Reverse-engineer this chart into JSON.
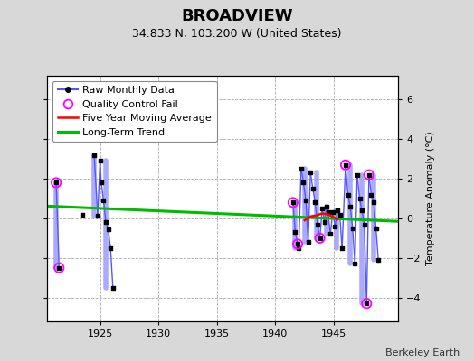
{
  "title": "BROADVIEW",
  "subtitle": "34.833 N, 103.200 W (United States)",
  "ylabel": "Temperature Anomaly (°C)",
  "credit": "Berkeley Earth",
  "xlim": [
    1920.5,
    1950.5
  ],
  "ylim": [
    -5.2,
    7.2
  ],
  "yticks": [
    -4,
    -2,
    0,
    2,
    4,
    6
  ],
  "xticks": [
    1925,
    1930,
    1935,
    1940,
    1945
  ],
  "bg_color": "#d8d8d8",
  "plot_bg_color": "#ffffff",
  "grid_color": "#aaaaaa",
  "raw_monthly": [
    [
      1921.25,
      1.8
    ],
    [
      1921.5,
      -2.5
    ],
    [
      1923.5,
      0.2
    ],
    [
      1924.5,
      3.2
    ],
    [
      1924.8,
      0.15
    ],
    [
      1925.0,
      2.9
    ],
    [
      1925.1,
      1.8
    ],
    [
      1925.3,
      0.9
    ],
    [
      1925.5,
      -0.2
    ],
    [
      1925.7,
      -0.55
    ],
    [
      1925.9,
      -1.5
    ],
    [
      1926.1,
      -3.5
    ],
    [
      1941.5,
      0.8
    ],
    [
      1941.7,
      -0.7
    ],
    [
      1941.9,
      -1.3
    ],
    [
      1942.0,
      -1.5
    ],
    [
      1942.2,
      2.5
    ],
    [
      1942.4,
      1.8
    ],
    [
      1942.6,
      0.9
    ],
    [
      1942.8,
      -1.2
    ],
    [
      1943.0,
      2.3
    ],
    [
      1943.2,
      1.5
    ],
    [
      1943.4,
      0.8
    ],
    [
      1943.6,
      -0.3
    ],
    [
      1943.8,
      -1.0
    ],
    [
      1944.0,
      0.5
    ],
    [
      1944.2,
      -0.2
    ],
    [
      1944.35,
      0.6
    ],
    [
      1944.5,
      0.3
    ],
    [
      1944.7,
      -0.8
    ],
    [
      1944.9,
      0.3
    ],
    [
      1945.1,
      -0.4
    ],
    [
      1945.3,
      0.4
    ],
    [
      1945.5,
      0.2
    ],
    [
      1945.7,
      -1.5
    ],
    [
      1946.0,
      2.7
    ],
    [
      1946.2,
      1.2
    ],
    [
      1946.4,
      0.6
    ],
    [
      1946.6,
      -0.5
    ],
    [
      1946.8,
      -2.3
    ],
    [
      1947.0,
      2.2
    ],
    [
      1947.2,
      1.0
    ],
    [
      1947.4,
      0.4
    ],
    [
      1947.6,
      -0.3
    ],
    [
      1947.8,
      -4.3
    ],
    [
      1948.0,
      2.2
    ],
    [
      1948.2,
      1.2
    ],
    [
      1948.4,
      0.8
    ],
    [
      1948.6,
      -0.5
    ],
    [
      1948.8,
      -2.1
    ]
  ],
  "qc_fail": [
    [
      1921.25,
      1.8
    ],
    [
      1921.5,
      -2.5
    ],
    [
      1941.5,
      0.8
    ],
    [
      1941.9,
      -1.3
    ],
    [
      1943.8,
      -1.0
    ],
    [
      1946.0,
      2.7
    ],
    [
      1947.8,
      -4.3
    ],
    [
      1948.0,
      2.2
    ]
  ],
  "annual_segments": [
    {
      "x": 1921.25,
      "y_min": -2.5,
      "y_max": 1.8
    },
    {
      "x": 1923.5,
      "y_min": 0.2,
      "y_max": 0.2
    },
    {
      "x": 1924.5,
      "y_min": 0.15,
      "y_max": 3.2
    },
    {
      "x": 1924.8,
      "y_min": 0.15,
      "y_max": 0.15
    },
    {
      "x": 1925.5,
      "y_min": -3.5,
      "y_max": 2.9
    },
    {
      "x": 1941.7,
      "y_min": -1.5,
      "y_max": 0.8
    },
    {
      "x": 1942.5,
      "y_min": -1.2,
      "y_max": 2.5
    },
    {
      "x": 1943.5,
      "y_min": -1.0,
      "y_max": 2.3
    },
    {
      "x": 1944.4,
      "y_min": -0.8,
      "y_max": 0.6
    },
    {
      "x": 1945.2,
      "y_min": -1.5,
      "y_max": 0.4
    },
    {
      "x": 1946.4,
      "y_min": -2.3,
      "y_max": 2.7
    },
    {
      "x": 1947.4,
      "y_min": -4.3,
      "y_max": 2.2
    },
    {
      "x": 1948.4,
      "y_min": -2.1,
      "y_max": 2.2
    }
  ],
  "five_year_avg": [
    [
      1942.5,
      -0.1
    ],
    [
      1943.0,
      0.1
    ],
    [
      1943.5,
      0.15
    ],
    [
      1944.0,
      0.25
    ],
    [
      1944.5,
      0.2
    ],
    [
      1945.0,
      0.05
    ],
    [
      1945.3,
      -0.05
    ]
  ],
  "trend_x": [
    1920.5,
    1950.5
  ],
  "trend_y": [
    0.62,
    -0.15
  ],
  "raw_dot_color": "#000000",
  "raw_line_color": "#5555ff",
  "raw_shade_color": "#aaaaff",
  "qc_color": "#ff00ff",
  "avg_color": "#ff0000",
  "trend_color": "#00bb00",
  "title_fontsize": 13,
  "subtitle_fontsize": 9,
  "tick_fontsize": 8,
  "legend_fontsize": 8
}
